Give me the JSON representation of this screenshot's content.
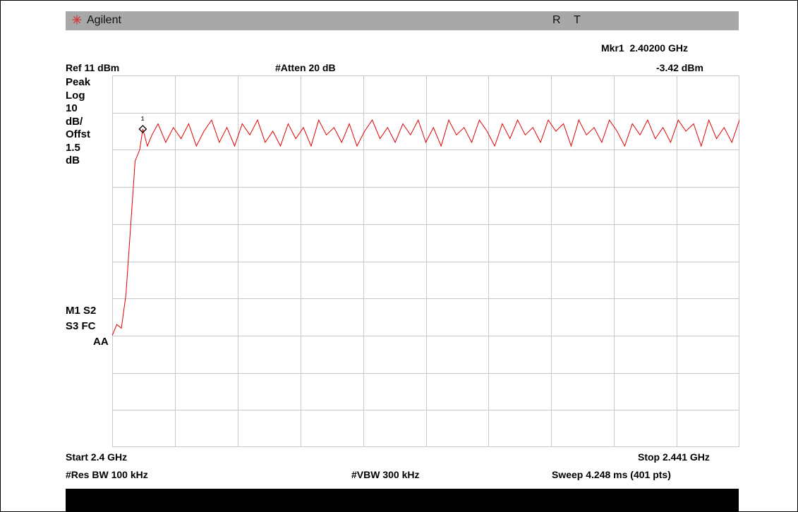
{
  "titlebar": {
    "brand": "Agilent",
    "status_r": "R",
    "status_t": "T"
  },
  "marker": {
    "label": "Mkr1",
    "frequency": "2.40200 GHz",
    "amplitude": "-3.42 dBm",
    "id": "1"
  },
  "header": {
    "ref_level": "Ref 11 dBm",
    "attenuation": "#Atten 20 dB"
  },
  "side_labels": [
    "Peak",
    "Log",
    "10",
    "dB/",
    "Offst",
    "1.5",
    "dB"
  ],
  "status_codes": {
    "line1": "M1  S2",
    "line2": "S3  FC",
    "line3": "AA"
  },
  "footer": {
    "start": "Start 2.4 GHz",
    "stop": "Stop 2.441 GHz",
    "res_bw": "#Res BW 100 kHz",
    "vbw": "#VBW 300 kHz",
    "sweep": "Sweep 4.248 ms (401 pts)"
  },
  "colors": {
    "trace": "#e00000",
    "grid": "#c8c8c8",
    "titlebar": "#a8a8a8"
  },
  "chart_data": {
    "type": "line",
    "x_unit": "GHz",
    "y_unit": "dBm",
    "xlim": [
      2.4,
      2.441
    ],
    "ylim": [
      -89,
      11
    ],
    "y_divisions": 10,
    "x_divisions": 10,
    "grid": true,
    "marker": {
      "x": 2.402,
      "y": -3.42
    },
    "series": [
      {
        "x": [
          2.4,
          2.4003,
          2.4006,
          2.4009,
          2.4012,
          2.4015,
          2.4018,
          2.402,
          2.4023,
          2.4026,
          2.403,
          2.4035,
          2.404,
          2.4045,
          2.405,
          2.4055,
          2.406,
          2.4065,
          2.407,
          2.4075,
          2.408,
          2.4085,
          2.409,
          2.4095,
          2.41,
          2.4105,
          2.411,
          2.4115,
          2.412,
          2.4125,
          2.413,
          2.4135,
          2.414,
          2.4145,
          2.415,
          2.4155,
          2.416,
          2.4165,
          2.417,
          2.4175,
          2.418,
          2.4185,
          2.419,
          2.4195,
          2.42,
          2.4205,
          2.421,
          2.4215,
          2.422,
          2.4225,
          2.423,
          2.4235,
          2.424,
          2.4245,
          2.425,
          2.4255,
          2.426,
          2.4265,
          2.427,
          2.4275,
          2.428,
          2.4285,
          2.429,
          2.4295,
          2.43,
          2.4305,
          2.431,
          2.4315,
          2.432,
          2.4325,
          2.433,
          2.4335,
          2.434,
          2.4345,
          2.435,
          2.4355,
          2.436,
          2.4365,
          2.437,
          2.4375,
          2.438,
          2.4385,
          2.439,
          2.4395,
          2.44,
          2.4405,
          2.441
        ],
        "y": [
          -59,
          -56,
          -57,
          -48,
          -30,
          -12,
          -9,
          -3.4,
          -8,
          -5,
          -2,
          -7,
          -3,
          -6,
          -2,
          -8,
          -4,
          -1,
          -7,
          -3,
          -8,
          -2,
          -5,
          -1,
          -7,
          -4,
          -8,
          -2,
          -6,
          -3,
          -8,
          -1,
          -5,
          -3,
          -7,
          -2,
          -8,
          -4,
          -1,
          -6,
          -3,
          -7,
          -2,
          -5,
          -1,
          -7,
          -3,
          -8,
          -1,
          -5,
          -3,
          -7,
          -1,
          -4,
          -8,
          -2,
          -6,
          -1,
          -5,
          -3,
          -7,
          -1,
          -4,
          -2,
          -8,
          -1,
          -5,
          -3,
          -7,
          -1,
          -4,
          -8,
          -2,
          -5,
          -1,
          -6,
          -3,
          -7,
          -1,
          -4,
          -2,
          -8,
          -1,
          -6,
          -3,
          -7,
          -1
        ]
      }
    ]
  }
}
